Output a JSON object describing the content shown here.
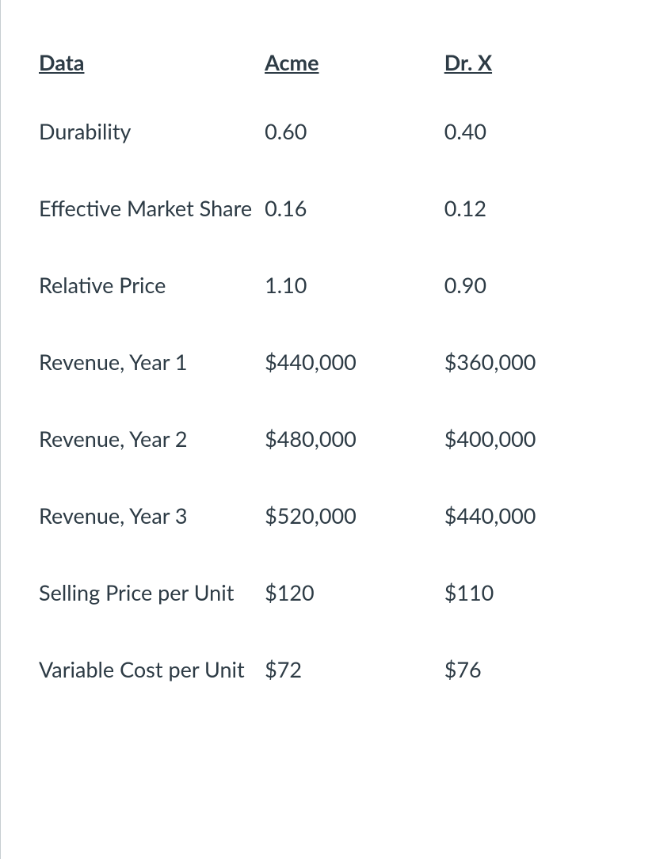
{
  "table": {
    "type": "table",
    "columns": [
      {
        "label": "Data",
        "width": "39%"
      },
      {
        "label": "Acme",
        "width": "31%"
      },
      {
        "label": "Dr. X",
        "width": "30%"
      }
    ],
    "rows": [
      {
        "data": "Durability",
        "acme": "0.60",
        "drx": "0.40"
      },
      {
        "data": "Effective Market Share",
        "acme": "0.16",
        "drx": "0.12"
      },
      {
        "data": "Relative Price",
        "acme": "1.10",
        "drx": "0.90"
      },
      {
        "data": "Revenue, Year 1",
        "acme": "$440,000",
        "drx": "$360,000"
      },
      {
        "data": "Revenue, Year 2",
        "acme": "$480,000",
        "drx": "$400,000"
      },
      {
        "data": "Revenue, Year 3",
        "acme": "$520,000",
        "drx": "$440,000"
      },
      {
        "data": "Selling Price per Unit",
        "acme": "$120",
        "drx": "$110"
      },
      {
        "data": "Variable Cost per Unit",
        "acme": "$72",
        "drx": "$76"
      }
    ],
    "styling": {
      "header_font_weight": 700,
      "header_underline": true,
      "header_fontsize": 27,
      "body_fontsize": 27,
      "text_color": "#2d3b45",
      "background_color": "#ffffff",
      "border_left_color": "#c7cdd1",
      "cell_padding_vertical": 32,
      "header_padding_vertical": 22
    }
  }
}
